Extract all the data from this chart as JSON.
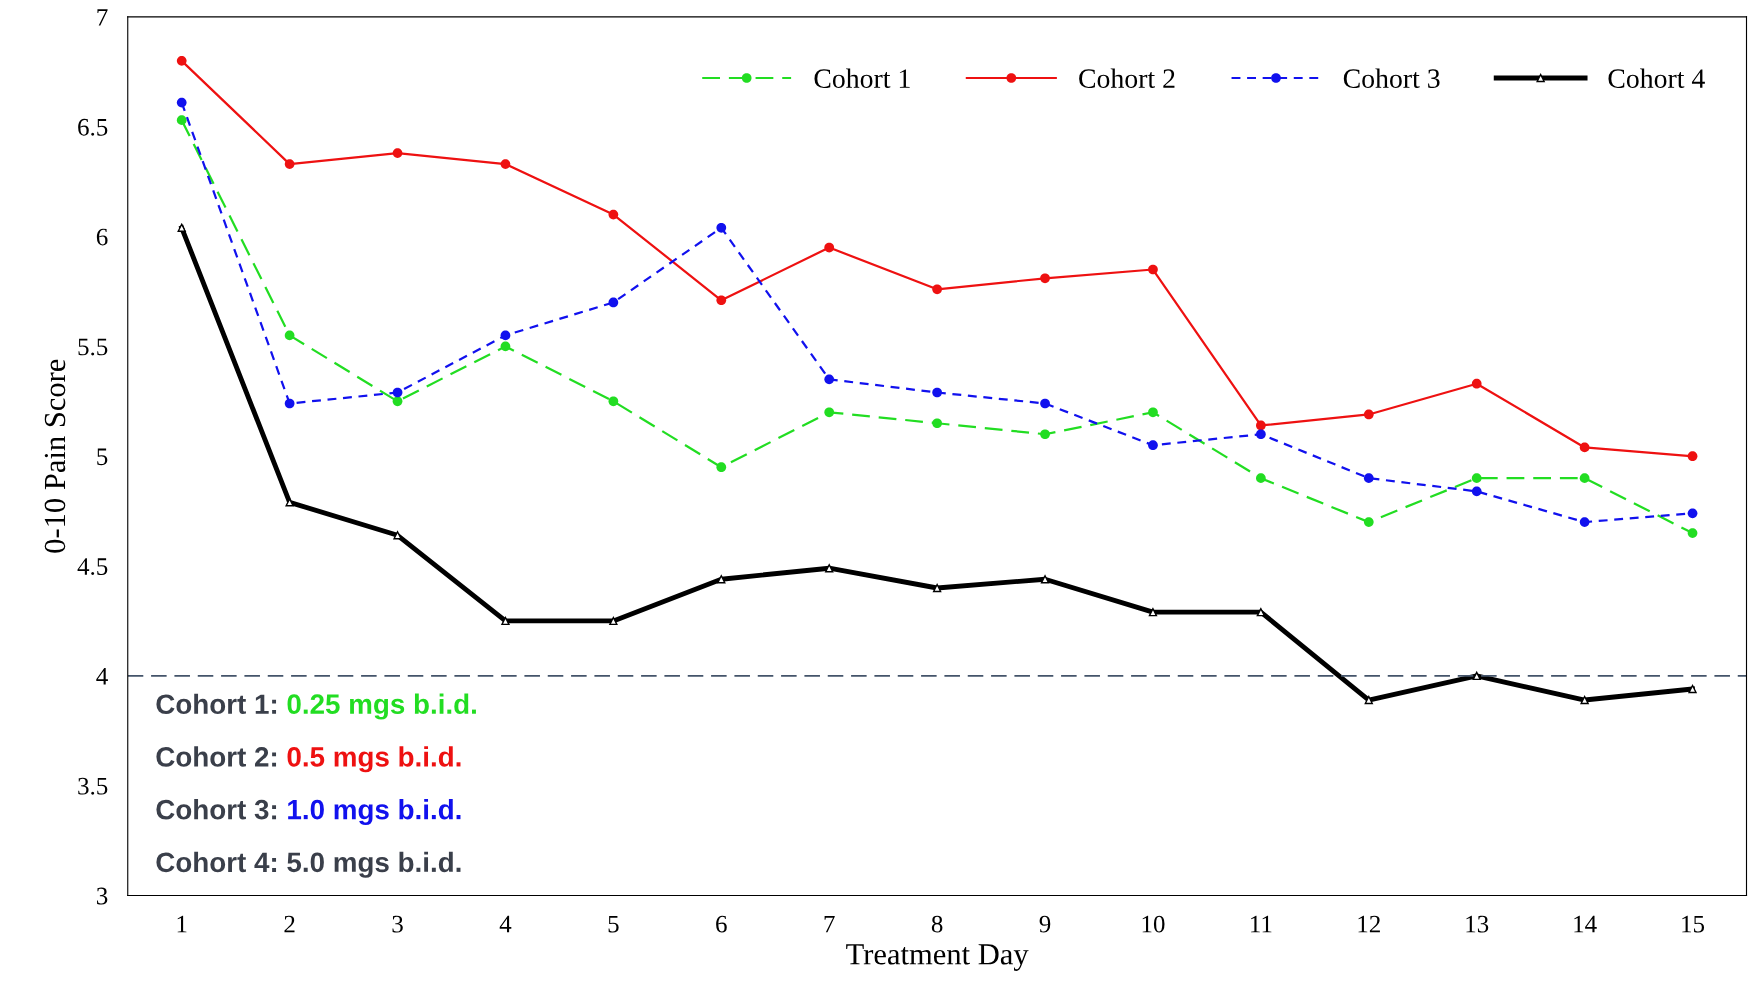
{
  "chart_data": {
    "type": "line",
    "xlabel": "Treatment Day",
    "ylabel": "0-10 Pain Score",
    "categories": [
      "1",
      "2",
      "3",
      "4",
      "5",
      "6",
      "7",
      "8",
      "9",
      "10",
      "11",
      "12",
      "13",
      "14",
      "15"
    ],
    "series": [
      {
        "name": "Cohort 1",
        "color": "#22dd22",
        "line_style": "dashed",
        "marker": "circle",
        "values": [
          6.53,
          5.55,
          5.25,
          5.5,
          5.25,
          4.95,
          5.2,
          5.15,
          5.1,
          5.2,
          4.9,
          4.7,
          4.9,
          4.9,
          4.65
        ]
      },
      {
        "name": "Cohort 2",
        "color": "#ee1111",
        "line_style": "solid",
        "marker": "circle",
        "values": [
          6.8,
          6.33,
          6.38,
          6.33,
          6.1,
          5.71,
          5.95,
          5.76,
          5.81,
          5.85,
          5.14,
          5.19,
          5.33,
          5.04,
          5.0
        ]
      },
      {
        "name": "Cohort 3",
        "color": "#1111ee",
        "line_style": "dotted",
        "marker": "circle",
        "values": [
          6.61,
          5.24,
          5.29,
          5.55,
          5.7,
          6.04,
          5.35,
          5.29,
          5.24,
          5.05,
          5.1,
          4.9,
          4.84,
          4.7,
          4.74
        ]
      },
      {
        "name": "Cohort 4",
        "color": "#000000",
        "line_style": "solid",
        "marker": "triangle",
        "values": [
          6.04,
          4.79,
          4.64,
          4.25,
          4.25,
          4.44,
          4.49,
          4.4,
          4.44,
          4.29,
          4.29,
          3.89,
          4.0,
          3.89,
          3.94
        ]
      }
    ],
    "ylim": [
      3,
      7
    ],
    "yticks": [
      3,
      3.5,
      4,
      4.5,
      5,
      5.5,
      6,
      6.5,
      7
    ],
    "ref_lines": [
      {
        "axis": "y",
        "value": 4,
        "color": "#44546a",
        "line_style": "dashed"
      }
    ],
    "annotations": [
      "Cohort 1: 0.25 mgs b.i.d.",
      "Cohort 2: 0.5 mgs b.i.d.",
      "Cohort 3: 1.0 mgs b.i.d.",
      "Cohort 4: 5.0 mgs b.i.d."
    ],
    "legend": "top right",
    "grid": false
  }
}
